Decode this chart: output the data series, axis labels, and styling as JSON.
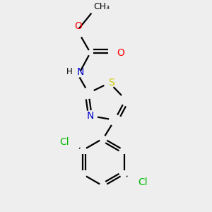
{
  "background_color": "#eeeeee",
  "atom_colors": {
    "C": "#000000",
    "H": "#000000",
    "N": "#0000cc",
    "O": "#ff0000",
    "S": "#cccc00",
    "Cl": "#00bb00"
  },
  "bond_color": "#000000",
  "bond_width": 1.6,
  "font_size_atoms": 10,
  "font_size_small": 8.5,
  "xlim": [
    0.0,
    1.0
  ],
  "ylim": [
    0.0,
    1.0
  ]
}
